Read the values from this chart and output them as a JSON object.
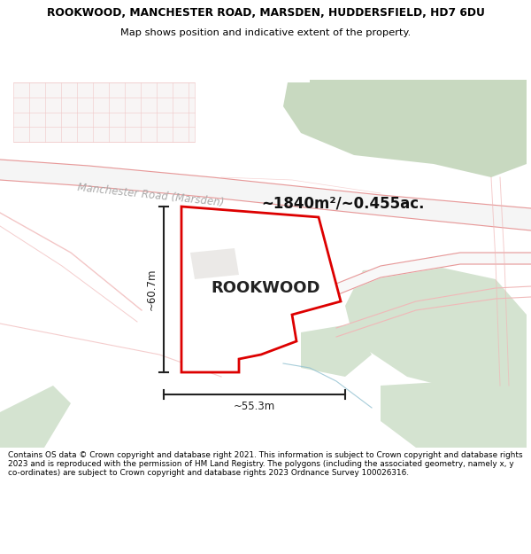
{
  "title_line1": "ROOKWOOD, MANCHESTER ROAD, MARSDEN, HUDDERSFIELD, HD7 6DU",
  "title_line2": "Map shows position and indicative extent of the property.",
  "area_text": "~1840m²/~0.455ac.",
  "label_rookwood": "ROOKWOOD",
  "dim_height": "~60.7m",
  "dim_width": "~55.3m",
  "road_label": "Manchester Road (Marsden)",
  "footer": "Contains OS data © Crown copyright and database right 2021. This information is subject to Crown copyright and database rights 2023 and is reproduced with the permission of HM Land Registry. The polygons (including the associated geometry, namely x, y co-ordinates) are subject to Crown copyright and database rights 2023 Ordnance Survey 100026316.",
  "map_bg": "#ffffff",
  "green_color": "#d4e3d0",
  "green_dark": "#c8d9c0",
  "road_color": "#f0b8b8",
  "road_edge_color": "#e89898",
  "road_label_color": "#aaaaaa",
  "property_fill": "#ffffff",
  "property_edge": "#dd0000",
  "dim_color": "#222222",
  "building_fill": "#f5f0f0",
  "building_grid": "#f0c8c8",
  "gray_shade": "#e8e5e0"
}
